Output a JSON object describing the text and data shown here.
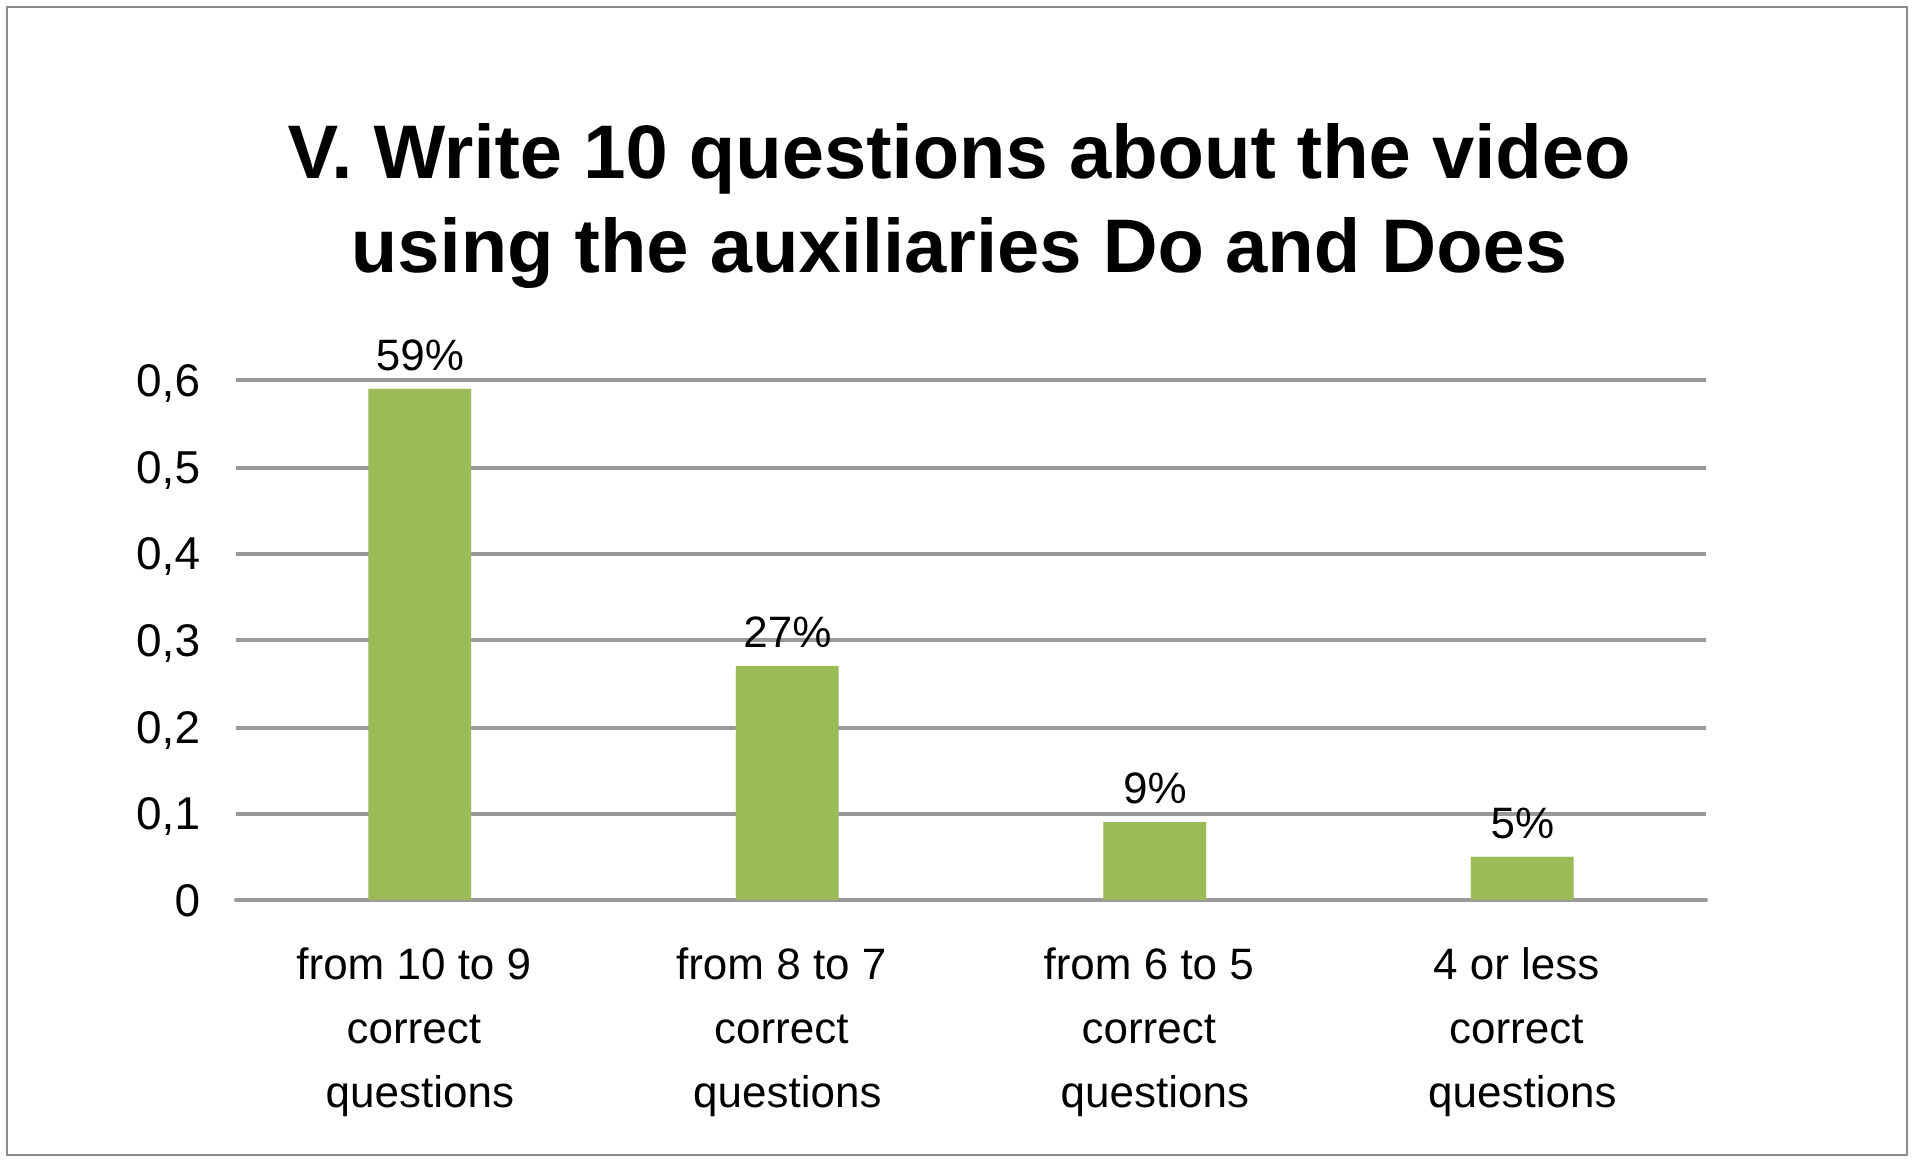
{
  "chart_data": {
    "type": "bar",
    "title": "V. Write 10 questions about the video using the auxiliaries Do and Does",
    "categories": [
      "from 10 to 9 correct questions",
      "from 8 to 7 correct questions",
      "from 6 to 5 correct questions",
      "4 or less correct questions"
    ],
    "values": [
      0.59,
      0.27,
      0.09,
      0.05
    ],
    "value_labels": [
      "59%",
      "27%",
      "9%",
      "5%"
    ],
    "color": "#9bbb59",
    "ylim": [
      0,
      0.6
    ],
    "yticks": [
      0,
      {
        "value": 0.1,
        "label": "0,1"
      },
      {
        "value": 0.2,
        "label": "0,2"
      },
      {
        "value": 0.3,
        "label": "0,3"
      },
      {
        "value": 0.4,
        "label": "0,4"
      },
      {
        "value": 0.5,
        "label": "0,5"
      },
      {
        "value": 0.6,
        "label": "0,6"
      }
    ],
    "grid": "y"
  }
}
